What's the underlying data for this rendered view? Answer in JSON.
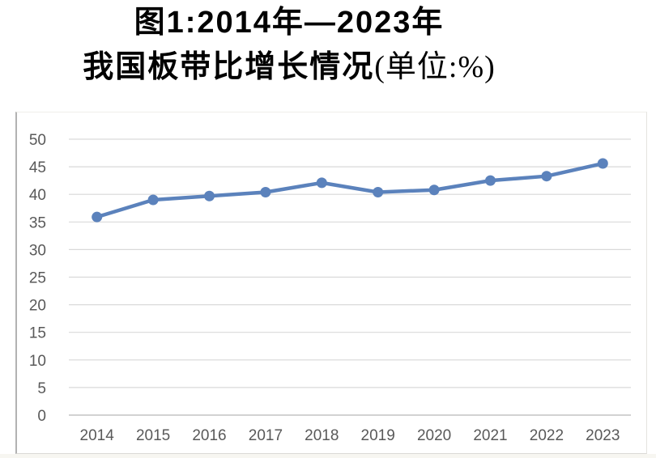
{
  "title": {
    "line1": "图1:2014年—2023年",
    "line2_main": "我国板带比增长情况",
    "line2_unit": "(单位:%)"
  },
  "chart_data": {
    "type": "line",
    "title": "图1:2014年—2023年 我国板带比增长情况(单位:%)",
    "categories": [
      "2014",
      "2015",
      "2016",
      "2017",
      "2018",
      "2019",
      "2020",
      "2021",
      "2022",
      "2023"
    ],
    "values": [
      35.9,
      39.0,
      39.7,
      40.4,
      42.1,
      40.4,
      40.8,
      42.5,
      43.3,
      45.6
    ],
    "xlabel": "",
    "ylabel": "",
    "ylim": [
      0,
      50
    ],
    "ytick_step": 5,
    "yticks": [
      0,
      5,
      10,
      15,
      20,
      25,
      30,
      35,
      40,
      45,
      50
    ],
    "grid": true,
    "legend": "none",
    "marker": "circle"
  },
  "colors": {
    "line": "#5b82bc",
    "marker": "#5b82bc",
    "gridline": "#d9d9d9",
    "axis_line": "#c3c3c3",
    "tick_label": "#595959",
    "title_text": "#000000",
    "chart_border": "#b2b2b2"
  }
}
